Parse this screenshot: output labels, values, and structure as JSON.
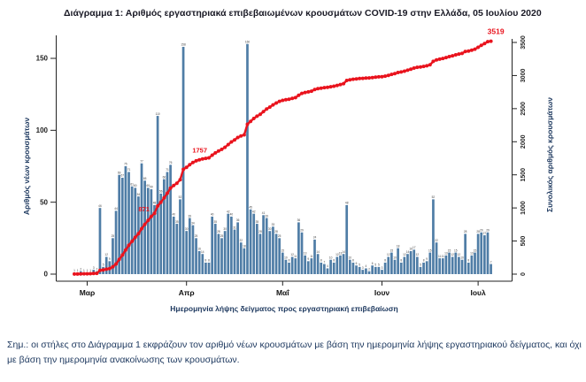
{
  "title": "Διάγραμμα 1: Αριθμός εργαστηριακά επιβεβαιωμένων κρουσμάτων COVID-19 στην Ελλάδα, 05 Ιουλίου 2020",
  "footnote": "Σημ.: οι στήλες στο Διάγραμμα 1 εκφράζουν τον αριθμό νέων κρουσμάτων με βάση την ημερομηνία λήψης εργαστηριακού δείγματος, και όχι με βάση την ημερομηνία ανακοίνωσης των κρουσμάτων.",
  "chart_data": {
    "type": "bar",
    "combo": "bar+cumulative-line",
    "x_start_date": "2020-02-26",
    "x_end_date": "2020-07-05",
    "xlabel": "Ημερομηνία λήψης δείγματος προς εργαστηριακή επιβεβαίωση",
    "left_axis": {
      "label": "Αριθμός νέων κρουσμάτων",
      "ticks": [
        0,
        50,
        100,
        150
      ],
      "range": [
        0,
        165
      ]
    },
    "right_axis": {
      "label": "Συνολικός αριθμός κρουσμάτων",
      "ticks": [
        0,
        500,
        1000,
        1500,
        2000,
        2500,
        3000,
        3500
      ],
      "range": [
        0,
        3500
      ]
    },
    "month_ticks": [
      {
        "label": "Μαρ",
        "day_index": 4
      },
      {
        "label": "Απρ",
        "day_index": 35
      },
      {
        "label": "Μαΐ",
        "day_index": 65
      },
      {
        "label": "Ιουν",
        "day_index": 96
      },
      {
        "label": "Ιουλ",
        "day_index": 126
      }
    ],
    "series": [
      {
        "name": "Αριθμός νέων κρουσμάτων (ημερήσια, estimated from bars)",
        "type": "bar",
        "values": [
          1,
          1,
          2,
          1,
          1,
          1,
          3,
          2,
          46,
          5,
          12,
          9,
          25,
          44,
          69,
          67,
          75,
          71,
          61,
          60,
          54,
          77,
          65,
          60,
          59,
          48,
          110,
          56,
          66,
          71,
          76,
          40,
          35,
          52,
          158,
          30,
          39,
          34,
          25,
          16,
          14,
          8,
          8,
          40,
          35,
          28,
          25,
          30,
          42,
          40,
          31,
          36,
          22,
          18,
          160,
          45,
          42,
          35,
          28,
          41,
          39,
          30,
          33,
          28,
          25,
          15,
          10,
          8,
          12,
          11,
          36,
          29,
          13,
          9,
          11,
          24,
          14,
          8,
          7,
          4,
          10,
          8,
          12,
          13,
          14,
          48,
          10,
          8,
          6,
          5,
          3,
          4,
          2,
          6,
          5,
          5,
          3,
          8,
          12,
          15,
          10,
          18,
          8,
          12,
          14,
          16,
          17,
          12,
          5,
          8,
          9,
          15,
          52,
          22,
          11,
          11,
          13,
          15,
          12,
          15,
          12,
          10,
          28,
          8,
          13,
          15,
          28,
          29,
          27,
          29,
          7
        ]
      },
      {
        "name": "Συνολικός αριθμός κρουσμάτων",
        "type": "line",
        "derived": "cumulative sum of daily bar values",
        "final_value": 3519
      }
    ],
    "annotations": [
      {
        "text": "871",
        "day_index": 24,
        "cumulative": 871
      },
      {
        "text": "1757",
        "day_index": 42,
        "cumulative": 1757
      },
      {
        "text": "3519",
        "day_index": 130,
        "cumulative": 3519
      }
    ],
    "legend": "none",
    "grid": false,
    "colors": {
      "bar": "#4f7da6",
      "line": "#e9131d",
      "annotation": "#e9131d",
      "axis": "#222222",
      "bar_label": "#444444"
    }
  }
}
